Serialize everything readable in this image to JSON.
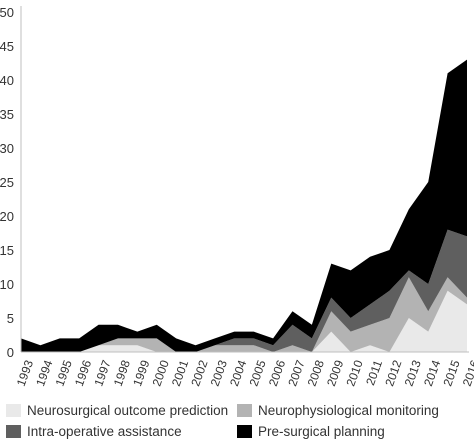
{
  "chart_data": {
    "type": "area",
    "stacked": true,
    "x": [
      "1993",
      "1994",
      "1995",
      "1996",
      "1997",
      "1998",
      "1999",
      "2000",
      "2001",
      "2002",
      "2003",
      "2004",
      "2005",
      "2006",
      "2007",
      "2008",
      "2009",
      "2010",
      "2011",
      "2012",
      "2013",
      "2014",
      "2015",
      "2016"
    ],
    "ylim": [
      0,
      50
    ],
    "yticks": [
      0,
      5,
      10,
      15,
      20,
      25,
      30,
      35,
      40,
      45,
      50
    ],
    "grid": false,
    "legend_position": "bottom",
    "series": [
      {
        "name": "Neurosurgical outcome prediction",
        "color": "#e9e9e9",
        "values": [
          0,
          0,
          0,
          0,
          1,
          1,
          1,
          0,
          0,
          0,
          0,
          0,
          0,
          0,
          0,
          0,
          3,
          0,
          1,
          0,
          5,
          3,
          9,
          7
        ]
      },
      {
        "name": "Neurophysiological monitoring",
        "color": "#b3b3b3",
        "values": [
          0,
          0,
          0,
          0,
          0,
          1,
          1,
          2,
          0,
          0,
          1,
          1,
          1,
          0,
          1,
          0,
          3,
          3,
          3,
          5,
          6,
          3,
          2,
          1
        ]
      },
      {
        "name": "Intra-operative assistance",
        "color": "#5f5f5f",
        "values": [
          0,
          0,
          0,
          0,
          0,
          0,
          0,
          0,
          0,
          0,
          0,
          1,
          1,
          1,
          3,
          2,
          2,
          2,
          3,
          4,
          1,
          4,
          7,
          9
        ]
      },
      {
        "name": "Pre-surgical planning",
        "color": "#000000",
        "values": [
          2,
          1,
          2,
          2,
          3,
          2,
          1,
          2,
          2,
          1,
          1,
          1,
          1,
          1,
          2,
          2,
          5,
          7,
          7,
          6,
          9,
          15,
          23,
          26
        ]
      }
    ]
  },
  "legend": {
    "items": [
      {
        "label": "Neurosurgical outcome prediction",
        "color": "#e9e9e9"
      },
      {
        "label": "Neurophysiological monitoring",
        "color": "#b3b3b3"
      },
      {
        "label": "Intra-operative assistance",
        "color": "#5f5f5f"
      },
      {
        "label": "Pre-surgical planning",
        "color": "#000000"
      }
    ]
  }
}
